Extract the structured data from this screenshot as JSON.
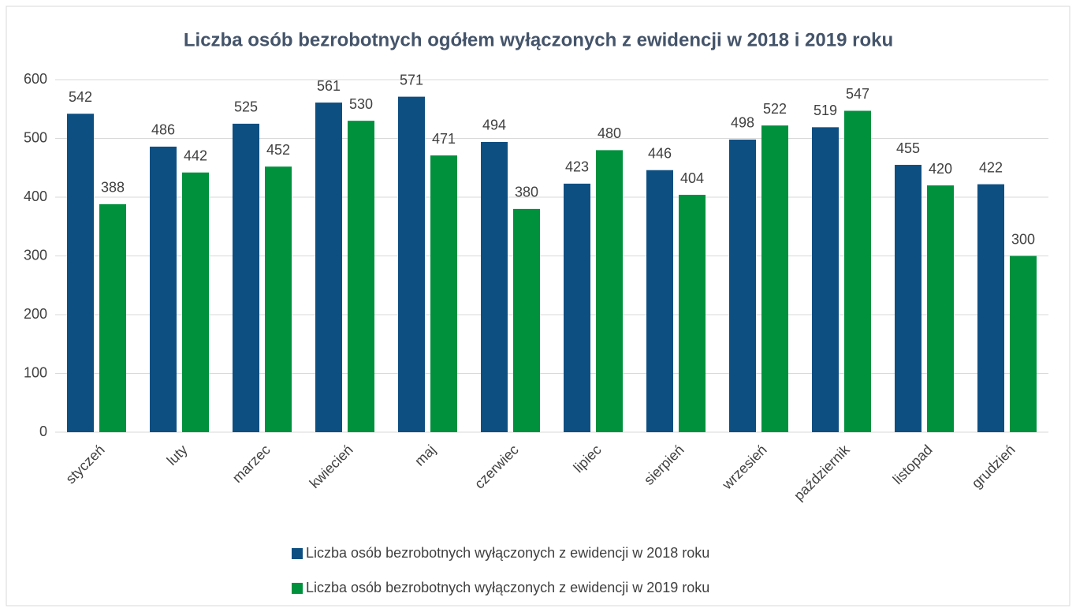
{
  "chart_data": {
    "type": "bar",
    "title": "Liczba osób bezrobotnych ogółem wyłączonych z ewidencji w 2018 i 2019 roku",
    "categories": [
      "styczeń",
      "luty",
      "marzec",
      "kwiecień",
      "maj",
      "czerwiec",
      "lipiec",
      "sierpień",
      "wrzesień",
      "październik",
      "listopad",
      "grudzień"
    ],
    "series": [
      {
        "name": "Liczba osób bezrobotnych wyłączonych z ewidencji w 2018 roku",
        "color": "#0e4f82",
        "values": [
          542,
          486,
          525,
          561,
          571,
          494,
          423,
          446,
          498,
          519,
          455,
          422
        ]
      },
      {
        "name": "Liczba osób bezrobotnych wyłączonych z ewidencji w 2019 roku",
        "color": "#00913d",
        "values": [
          388,
          442,
          452,
          530,
          471,
          380,
          480,
          404,
          522,
          547,
          420,
          300
        ]
      }
    ],
    "ylim": [
      0,
      600
    ],
    "yticks": [
      0,
      100,
      200,
      300,
      400,
      500,
      600
    ],
    "grid": true,
    "legend": "bottom"
  }
}
